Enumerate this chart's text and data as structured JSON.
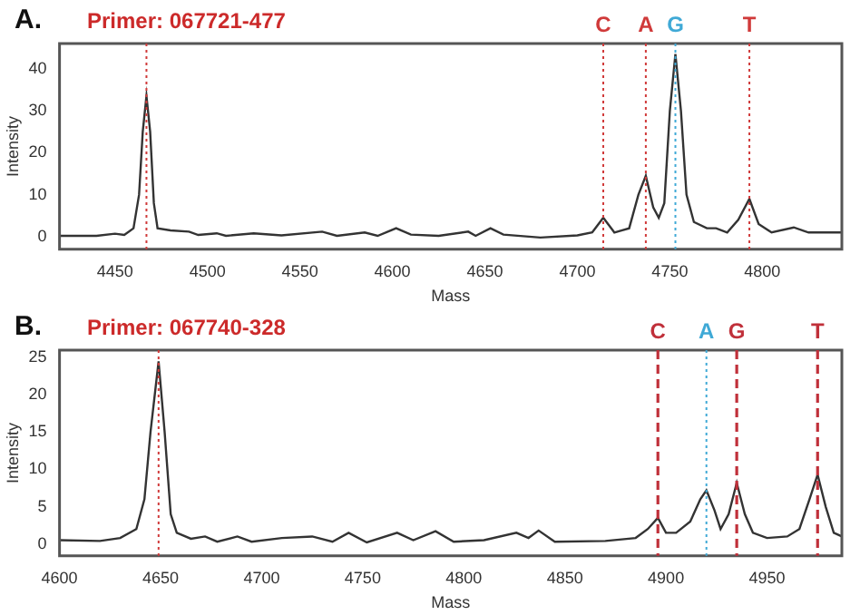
{
  "chart_data": [
    {
      "type": "line",
      "title": "Primer: 067721-477",
      "annotations": [
        "A."
      ],
      "xlabel": "Mass",
      "ylabel": "Intensity",
      "xlim": [
        4420,
        4843
      ],
      "xticks": [
        4450,
        4500,
        4550,
        4600,
        4650,
        4700,
        4750,
        4800
      ],
      "ylim": [
        -3,
        46
      ],
      "yticks": [
        0,
        10,
        20,
        30,
        40
      ],
      "grid": false,
      "legend": false,
      "x": [
        4420,
        4440,
        4450,
        4455,
        4460,
        4463,
        4465,
        4467,
        4469,
        4471,
        4473,
        4480,
        4490,
        4495,
        4505,
        4510,
        4525,
        4540,
        4562,
        4570,
        4585,
        4592,
        4602,
        4610,
        4625,
        4641,
        4645,
        4653,
        4660,
        4680,
        4700,
        4708,
        4714,
        4720,
        4728,
        4733,
        4737,
        4741,
        4744,
        4747,
        4750,
        4753,
        4756,
        4759,
        4763,
        4770,
        4775,
        4781,
        4787,
        4793,
        4798,
        4805,
        4817,
        4825,
        4843
      ],
      "series": [
        {
          "color": "#333333",
          "values": [
            0.2,
            0.2,
            0.7,
            0.4,
            2,
            10,
            25,
            33.5,
            25,
            8,
            2,
            1.5,
            1.2,
            0.4,
            0.8,
            0.2,
            0.8,
            0.3,
            1.2,
            0.2,
            1,
            0.2,
            2,
            0.5,
            0.2,
            1.2,
            0.2,
            2,
            0.5,
            -0.2,
            0.3,
            1,
            4.5,
            1,
            2,
            10,
            14.5,
            7,
            4.5,
            8,
            30,
            43.5,
            30,
            10,
            3.5,
            2,
            2,
            1,
            4,
            9,
            3,
            1,
            2.2,
            1,
            1
          ]
        }
      ],
      "ref_lines": [
        {
          "axis": "x",
          "value": 4467,
          "color": "#d03a3a",
          "line_style": "dotted"
        },
        {
          "axis": "x",
          "value": 4714,
          "label": "C",
          "color": "#d03a3a",
          "line_style": "dotted"
        },
        {
          "axis": "x",
          "value": 4737,
          "label": "A",
          "color": "#d03a3a",
          "line_style": "dotted"
        },
        {
          "axis": "x",
          "value": 4753,
          "label": "G",
          "color": "#3fa9d6",
          "line_style": "dotted"
        },
        {
          "axis": "x",
          "value": 4793,
          "label": "T",
          "color": "#d03a3a",
          "line_style": "dotted"
        }
      ]
    },
    {
      "type": "line",
      "title": "Primer: 067740-328",
      "annotations": [
        "B."
      ],
      "xlabel": "Mass",
      "ylabel": "Intensity",
      "xlim": [
        4600,
        4987
      ],
      "xticks": [
        4600,
        4650,
        4700,
        4750,
        4800,
        4850,
        4900,
        4950
      ],
      "ylim": [
        -1.6,
        26
      ],
      "yticks": [
        0,
        5,
        10,
        15,
        20,
        25
      ],
      "grid": false,
      "legend": false,
      "x": [
        4600,
        4620,
        4630,
        4638,
        4642,
        4645,
        4649,
        4652,
        4655,
        4658,
        4665,
        4672,
        4678,
        4688,
        4695,
        4710,
        4725,
        4735,
        4743,
        4752,
        4767,
        4775,
        4786,
        4795,
        4810,
        4826,
        4832,
        4837,
        4845,
        4870,
        4885,
        4891,
        4896,
        4900,
        4905,
        4912,
        4917,
        4920,
        4924,
        4927,
        4931,
        4935,
        4939,
        4943,
        4950,
        4960,
        4966,
        4971,
        4975,
        4979,
        4983,
        4987
      ],
      "series": [
        {
          "color": "#333333",
          "values": [
            0.5,
            0.4,
            0.8,
            2,
            6,
            15,
            24.5,
            15,
            4,
            1.5,
            0.7,
            1,
            0.3,
            1,
            0.3,
            0.8,
            1,
            0.3,
            1.5,
            0.2,
            1.5,
            0.5,
            1.7,
            0.3,
            0.5,
            1.5,
            0.8,
            1.8,
            0.3,
            0.4,
            0.8,
            2,
            3.5,
            1.5,
            1.5,
            3,
            6,
            7.2,
            4.5,
            2,
            4,
            8.2,
            4,
            1.5,
            0.8,
            1,
            2,
            6,
            9.3,
            5,
            1.5,
            1
          ]
        }
      ],
      "ref_lines": [
        {
          "axis": "x",
          "value": 4649,
          "color": "#d03a3a",
          "line_style": "dotted"
        },
        {
          "axis": "x",
          "value": 4896,
          "label": "C",
          "color": "#c0303a",
          "line_style": "dashed"
        },
        {
          "axis": "x",
          "value": 4920,
          "label": "A",
          "color": "#3fa9d6",
          "line_style": "dotted"
        },
        {
          "axis": "x",
          "value": 4935,
          "label": "G",
          "color": "#c0303a",
          "line_style": "dashed"
        },
        {
          "axis": "x",
          "value": 4975,
          "label": "T",
          "color": "#c0303a",
          "line_style": "dashed"
        }
      ]
    }
  ]
}
